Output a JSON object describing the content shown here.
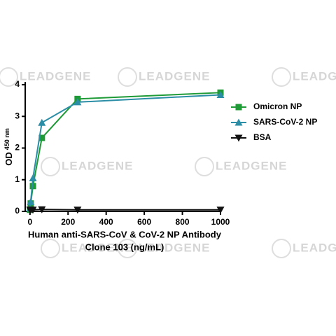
{
  "chart_data": {
    "type": "line",
    "watermark": "LEADGENE",
    "ylabel": "OD",
    "ylabel_sub": "450 nm",
    "xlabel": [
      "Human anti-SARS-CoV & CoV-2 NP Antibody",
      "Clone 103 (ng/mL)"
    ],
    "x": [
      0,
      3.9,
      15.6,
      62.5,
      250,
      1000
    ],
    "series": [
      {
        "name": "Omicron NP",
        "color": "#1e9a36",
        "marker": "square",
        "values": [
          0.05,
          0.25,
          0.8,
          2.32,
          3.55,
          3.75
        ]
      },
      {
        "name": "SARS-CoV-2 NP",
        "color": "#2b8ea6",
        "marker": "triangle-up",
        "values": [
          0.1,
          0.3,
          1.05,
          2.8,
          3.45,
          3.68
        ]
      },
      {
        "name": "BSA",
        "color": "#111111",
        "marker": "triangle-down",
        "values": [
          0.05,
          0.05,
          0.05,
          0.06,
          0.05,
          0.05
        ]
      }
    ],
    "xlim": [
      -25,
      1000
    ],
    "ylim": [
      0,
      4
    ],
    "xticks": [
      0,
      200,
      400,
      600,
      800,
      1000
    ],
    "yticks": [
      0,
      1,
      2,
      3,
      4
    ],
    "legend": "right"
  }
}
